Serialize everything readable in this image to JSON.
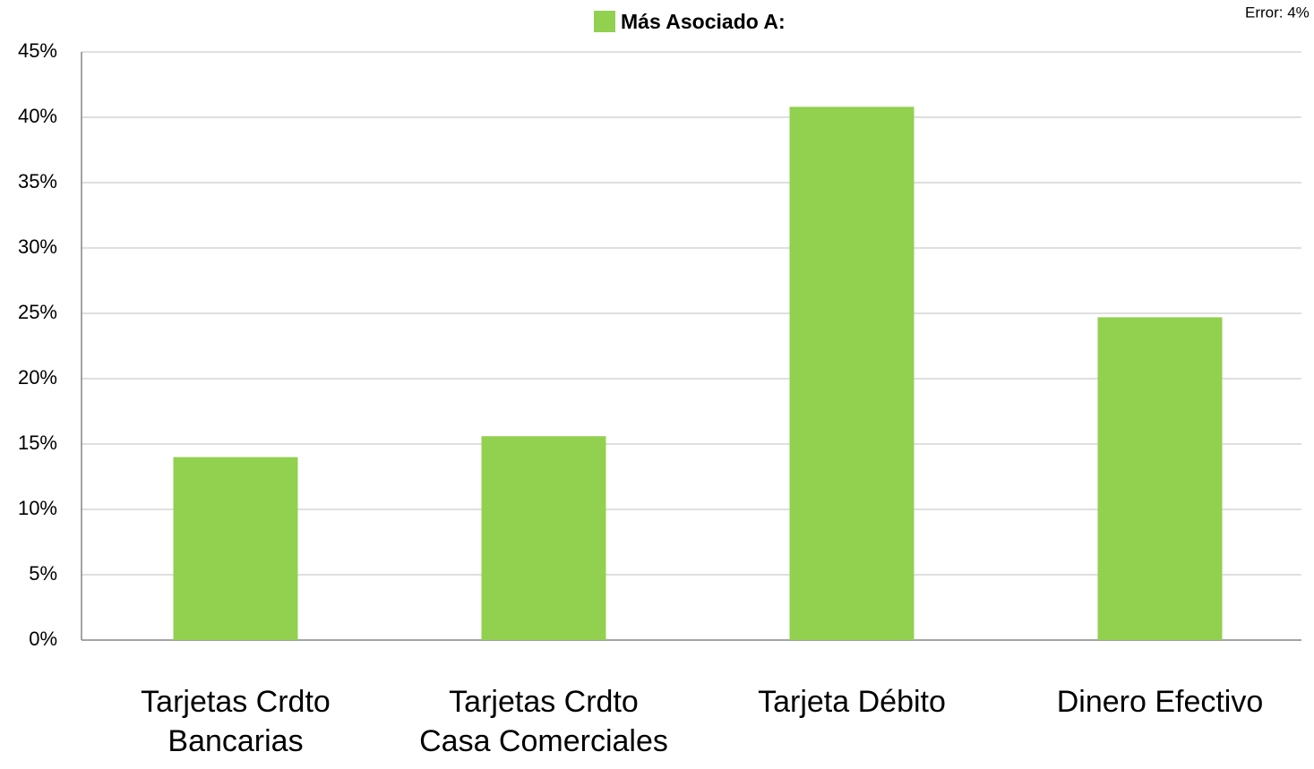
{
  "chart_data": {
    "type": "bar",
    "annotation": "Error: 4%",
    "categories": [
      "Tarjetas Crdto\nBancarias",
      "Tarjetas Crdto\nCasa Comerciales",
      "Tarjeta Débito",
      "Dinero Efectivo"
    ],
    "series": [
      {
        "name": "Más Asociado A:",
        "color": "#92d050",
        "values": [
          14,
          15.6,
          40.8,
          24.7
        ]
      }
    ],
    "ylim": [
      0,
      45
    ],
    "yticks": [
      {
        "value": 0,
        "label": "0%"
      },
      {
        "value": 5,
        "label": "5%"
      },
      {
        "value": 10,
        "label": "10%"
      },
      {
        "value": 15,
        "label": "15%"
      },
      {
        "value": 20,
        "label": "20%"
      },
      {
        "value": 25,
        "label": "25%"
      },
      {
        "value": 30,
        "label": "30%"
      },
      {
        "value": 35,
        "label": "35%"
      },
      {
        "value": 40,
        "label": "40%"
      },
      {
        "value": 45,
        "label": "45%"
      }
    ],
    "grid": true,
    "legend": "top"
  }
}
